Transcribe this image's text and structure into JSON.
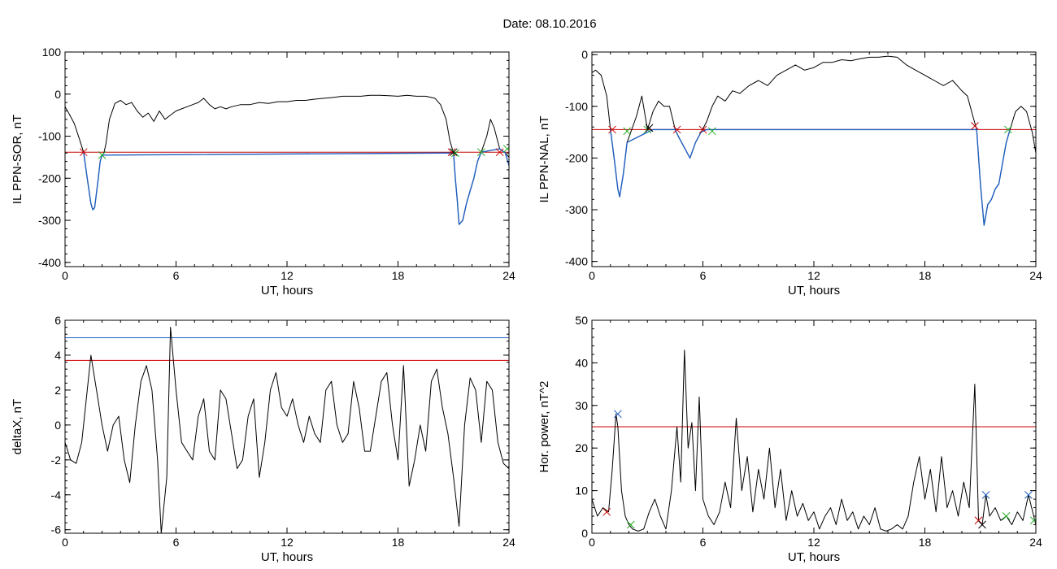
{
  "header": {
    "date_label": "Date:  08.10.2016"
  },
  "chart_data": [
    {
      "id": "ppn-sor",
      "type": "line",
      "xlabel": "UT, hours",
      "ylabel": "IL PPN-SOR, nT",
      "xlim": [
        0,
        24
      ],
      "ylim": [
        -410,
        100
      ],
      "xticks": [
        0,
        6,
        12,
        18,
        24
      ],
      "yticks": [
        -400,
        -300,
        -200,
        -100,
        0,
        100
      ],
      "threshold_lines": [
        {
          "y": -138,
          "color": "#cc0000"
        }
      ],
      "series": [
        {
          "color": "#000000",
          "x": [
            0,
            0.2,
            0.5,
            0.8,
            1.0,
            1.2,
            1.4,
            1.5,
            1.6,
            1.8,
            1.9,
            2.0,
            2.1,
            2.2,
            2.4,
            2.7,
            3.0,
            3.3,
            3.6,
            3.9,
            4.2,
            4.5,
            4.8,
            5.1,
            5.4,
            5.7,
            6.0,
            6.3,
            6.6,
            6.9,
            7.2,
            7.5,
            7.8,
            8.1,
            8.4,
            8.7,
            9,
            9.5,
            10,
            10.5,
            11,
            11.5,
            12,
            12.5,
            13,
            13.5,
            14,
            14.5,
            15,
            15.5,
            16,
            16.5,
            17,
            17.5,
            18,
            18.5,
            19,
            19.5,
            20,
            20.3,
            20.6,
            20.8,
            21.0,
            21.1,
            21.2,
            21.3,
            21.5,
            21.7,
            21.9,
            22.1,
            22.3,
            22.5,
            22.8,
            23.0,
            23.2,
            23.5,
            23.8,
            24.0
          ],
          "y": [
            -30,
            -45,
            -70,
            -110,
            -138,
            -200,
            -260,
            -275,
            -270,
            -200,
            -160,
            -145,
            -140,
            -120,
            -60,
            -22,
            -15,
            -25,
            -20,
            -40,
            -55,
            -45,
            -65,
            -40,
            -60,
            -50,
            -40,
            -35,
            -30,
            -25,
            -20,
            -10,
            -25,
            -35,
            -30,
            -35,
            -30,
            -25,
            -25,
            -20,
            -22,
            -18,
            -18,
            -15,
            -15,
            -12,
            -10,
            -8,
            -5,
            -5,
            -5,
            -3,
            -3,
            -4,
            -5,
            -3,
            -5,
            -5,
            -10,
            -25,
            -60,
            -110,
            -140,
            -200,
            -250,
            -310,
            -300,
            -260,
            -230,
            -200,
            -160,
            -138,
            -100,
            -60,
            -80,
            -130,
            -140,
            -150
          ]
        },
        {
          "color": "#1f5fbf",
          "x": [
            1.0,
            1.2,
            1.4,
            1.5,
            1.6,
            1.8,
            1.9,
            2.0,
            21.0,
            21.1,
            21.2,
            21.3,
            21.5,
            21.7,
            21.9,
            22.1,
            22.3,
            22.5,
            23.5,
            23.8,
            24.0
          ],
          "y": [
            -138,
            -200,
            -260,
            -275,
            -270,
            -200,
            -160,
            -145,
            -140,
            -200,
            -250,
            -310,
            -300,
            -260,
            -230,
            -200,
            -160,
            -138,
            -130,
            -140,
            -170
          ]
        }
      ],
      "markers": [
        {
          "x": 1.0,
          "y": -138,
          "color": "#cc0000"
        },
        {
          "x": 2.0,
          "y": -145,
          "color": "#22aa22"
        },
        {
          "x": 20.9,
          "y": -138,
          "color": "#cc0000"
        },
        {
          "x": 21.1,
          "y": -140,
          "color": "#22aa22"
        },
        {
          "x": 21.0,
          "y": -138,
          "color": "#000000"
        },
        {
          "x": 22.5,
          "y": -138,
          "color": "#22aa22"
        },
        {
          "x": 23.5,
          "y": -138,
          "color": "#cc0000"
        },
        {
          "x": 23.9,
          "y": -130,
          "color": "#22aa22"
        }
      ]
    },
    {
      "id": "ppn-nal",
      "type": "line",
      "xlabel": "UT, hours",
      "ylabel": "IL PPN-NAL, nT",
      "xlim": [
        0,
        24
      ],
      "ylim": [
        -410,
        5
      ],
      "xticks": [
        0,
        6,
        12,
        18,
        24
      ],
      "yticks": [
        -400,
        -300,
        -200,
        -100,
        0
      ],
      "threshold_lines": [
        {
          "y": -145,
          "color": "#cc0000"
        }
      ],
      "series": [
        {
          "color": "#000000",
          "x": [
            0,
            0.2,
            0.5,
            0.8,
            1.0,
            1.2,
            1.4,
            1.5,
            1.7,
            1.9,
            2.1,
            2.4,
            2.7,
            3.0,
            3.3,
            3.6,
            3.9,
            4.2,
            4.5,
            4.7,
            5.0,
            5.3,
            5.6,
            5.9,
            6.2,
            6.5,
            6.8,
            7.2,
            7.6,
            8.0,
            8.5,
            9,
            9.5,
            10,
            10.5,
            11,
            11.5,
            12,
            12.5,
            13,
            13.5,
            14,
            14.5,
            15,
            15.5,
            16,
            16.5,
            17,
            17.5,
            18,
            18.5,
            19,
            19.5,
            20,
            20.3,
            20.6,
            20.8,
            21.0,
            21.2,
            21.4,
            21.6,
            21.8,
            22.0,
            22.2,
            22.4,
            22.6,
            22.9,
            23.2,
            23.5,
            23.8,
            24.0
          ],
          "y": [
            -35,
            -30,
            -40,
            -80,
            -145,
            -200,
            -260,
            -275,
            -230,
            -170,
            -150,
            -120,
            -80,
            -145,
            -110,
            -90,
            -100,
            -100,
            -145,
            -160,
            -180,
            -200,
            -170,
            -150,
            -130,
            -100,
            -80,
            -90,
            -70,
            -75,
            -60,
            -50,
            -60,
            -40,
            -30,
            -20,
            -30,
            -25,
            -15,
            -15,
            -10,
            -12,
            -8,
            -5,
            -5,
            -3,
            -5,
            -20,
            -30,
            -40,
            -50,
            -60,
            -50,
            -70,
            -80,
            -120,
            -145,
            -250,
            -330,
            -290,
            -280,
            -260,
            -250,
            -210,
            -170,
            -145,
            -110,
            -100,
            -110,
            -150,
            -190
          ]
        },
        {
          "color": "#1f5fbf",
          "x": [
            1.0,
            1.2,
            1.4,
            1.5,
            1.7,
            1.9,
            3.0,
            3.3,
            4.5,
            4.7,
            5.0,
            5.3,
            5.6,
            5.9,
            6.2,
            20.8,
            21.0,
            21.2,
            21.4,
            21.6,
            21.8,
            22.0,
            22.2,
            22.4,
            22.6
          ],
          "y": [
            -145,
            -200,
            -260,
            -275,
            -230,
            -170,
            -150,
            -145,
            -145,
            -160,
            -180,
            -200,
            -170,
            -150,
            -145,
            -145,
            -250,
            -330,
            -290,
            -280,
            -260,
            -250,
            -210,
            -170,
            -145
          ]
        }
      ],
      "markers": [
        {
          "x": 1.1,
          "y": -145,
          "color": "#cc0000"
        },
        {
          "x": 1.9,
          "y": -148,
          "color": "#22aa22"
        },
        {
          "x": 3.0,
          "y": -145,
          "color": "#22aa22"
        },
        {
          "x": 3.1,
          "y": -142,
          "color": "#000000"
        },
        {
          "x": 4.6,
          "y": -145,
          "color": "#cc0000"
        },
        {
          "x": 6.0,
          "y": -145,
          "color": "#cc0000"
        },
        {
          "x": 6.5,
          "y": -148,
          "color": "#22aa22"
        },
        {
          "x": 20.7,
          "y": -138,
          "color": "#cc0000"
        },
        {
          "x": 22.5,
          "y": -145,
          "color": "#22aa22"
        }
      ]
    },
    {
      "id": "deltax",
      "type": "line",
      "xlabel": "UT, hours",
      "ylabel": "deltaX, nT",
      "xlim": [
        0,
        24
      ],
      "ylim": [
        -6.2,
        6
      ],
      "xticks": [
        0,
        6,
        12,
        18,
        24
      ],
      "yticks": [
        -6,
        -4,
        -2,
        0,
        2,
        4,
        6
      ],
      "threshold_lines": [
        {
          "y": 5.0,
          "color": "#1f5fbf"
        },
        {
          "y": 3.7,
          "color": "#cc0000"
        }
      ],
      "series": [
        {
          "color": "#000000",
          "x": [
            0,
            0.3,
            0.6,
            0.9,
            1.2,
            1.4,
            1.7,
            2.0,
            2.3,
            2.6,
            2.9,
            3.2,
            3.5,
            3.8,
            4.1,
            4.4,
            4.7,
            5.0,
            5.2,
            5.5,
            5.7,
            6.0,
            6.3,
            6.6,
            6.9,
            7.2,
            7.5,
            7.8,
            8.1,
            8.4,
            8.7,
            9.0,
            9.3,
            9.6,
            9.9,
            10.2,
            10.5,
            10.8,
            11.1,
            11.4,
            11.7,
            12.0,
            12.3,
            12.6,
            12.9,
            13.2,
            13.5,
            13.8,
            14.1,
            14.4,
            14.7,
            15.0,
            15.3,
            15.6,
            15.9,
            16.2,
            16.5,
            16.8,
            17.1,
            17.4,
            17.7,
            18.0,
            18.3,
            18.6,
            18.9,
            19.2,
            19.5,
            19.8,
            20.1,
            20.4,
            20.7,
            21.0,
            21.3,
            21.6,
            21.9,
            22.2,
            22.5,
            22.8,
            23.1,
            23.4,
            23.7,
            24.0
          ],
          "y": [
            -1,
            -2,
            -2.2,
            -1,
            2,
            4,
            2,
            0,
            -1.5,
            0,
            0.5,
            -2,
            -3.3,
            0,
            2.5,
            3.4,
            2,
            -2,
            -6.2,
            -3,
            5.6,
            2,
            -1,
            -1.5,
            -2,
            0.5,
            1.5,
            -1.5,
            -2,
            2,
            1.5,
            -0.5,
            -2.5,
            -2,
            0.5,
            1.5,
            -3,
            -1,
            2,
            3,
            1,
            0.5,
            1.5,
            0,
            -1,
            0.5,
            -0.5,
            -1,
            2,
            2.5,
            0,
            -1,
            -0.5,
            2.5,
            1,
            -1.5,
            -1.5,
            0.5,
            2.5,
            3,
            0,
            -2,
            3.4,
            -3.5,
            -2,
            0,
            -1.5,
            2.5,
            3.2,
            1,
            -0.5,
            -3,
            -5.8,
            0,
            2.7,
            2,
            -1,
            2.5,
            2,
            -1,
            -2.2,
            -2.5
          ]
        }
      ],
      "markers": []
    },
    {
      "id": "hor-power",
      "type": "line",
      "xlabel": "UT, hours",
      "ylabel": "Hor. power, nT^2",
      "xlim": [
        0,
        24
      ],
      "ylim": [
        0,
        50
      ],
      "xticks": [
        0,
        6,
        12,
        18,
        24
      ],
      "yticks": [
        0,
        10,
        20,
        30,
        40,
        50
      ],
      "threshold_lines": [
        {
          "y": 25,
          "color": "#cc0000"
        }
      ],
      "series": [
        {
          "color": "#000000",
          "x": [
            0,
            0.3,
            0.6,
            0.9,
            1.1,
            1.3,
            1.4,
            1.6,
            1.8,
            2.0,
            2.2,
            2.5,
            2.8,
            3.1,
            3.4,
            3.7,
            4.0,
            4.3,
            4.6,
            4.8,
            5.0,
            5.2,
            5.4,
            5.6,
            5.8,
            6.0,
            6.3,
            6.6,
            6.9,
            7.2,
            7.5,
            7.8,
            8.1,
            8.4,
            8.7,
            9.0,
            9.3,
            9.6,
            9.9,
            10.2,
            10.5,
            10.8,
            11.1,
            11.4,
            11.7,
            12.0,
            12.3,
            12.6,
            12.9,
            13.2,
            13.5,
            13.8,
            14.1,
            14.4,
            14.7,
            15.0,
            15.3,
            15.6,
            15.9,
            16.2,
            16.5,
            16.8,
            17.1,
            17.4,
            17.7,
            18.0,
            18.3,
            18.6,
            18.9,
            19.2,
            19.5,
            19.8,
            20.1,
            20.4,
            20.7,
            20.9,
            21.1,
            21.3,
            21.5,
            21.8,
            22.1,
            22.4,
            22.7,
            23.0,
            23.3,
            23.6,
            24.0
          ],
          "y": [
            8,
            4,
            6,
            5,
            15,
            28,
            25,
            10,
            4,
            2,
            1,
            0.5,
            1,
            5,
            8,
            4,
            1,
            10,
            25,
            12,
            43,
            20,
            26,
            10,
            32,
            8,
            4,
            2,
            5,
            12,
            6,
            27,
            10,
            18,
            5,
            15,
            8,
            20,
            6,
            15,
            3,
            10,
            4,
            7,
            3,
            5,
            1,
            4,
            6,
            2,
            8,
            3,
            5,
            1,
            4,
            2,
            6,
            1,
            0.5,
            1,
            2,
            1,
            4,
            12,
            18,
            8,
            15,
            5,
            18,
            6,
            10,
            4,
            12,
            6,
            35,
            3,
            2,
            9,
            4,
            6,
            3,
            4,
            2,
            5,
            3,
            9,
            2
          ]
        }
      ],
      "markers": [
        {
          "x": 0.8,
          "y": 5,
          "color": "#cc0000"
        },
        {
          "x": 1.4,
          "y": 28,
          "color": "#1f5fbf"
        },
        {
          "x": 2.1,
          "y": 2,
          "color": "#22aa22"
        },
        {
          "x": 20.9,
          "y": 3,
          "color": "#cc0000"
        },
        {
          "x": 21.1,
          "y": 2,
          "color": "#000000"
        },
        {
          "x": 21.3,
          "y": 9,
          "color": "#1f5fbf"
        },
        {
          "x": 22.4,
          "y": 4,
          "color": "#22aa22"
        },
        {
          "x": 23.6,
          "y": 9,
          "color": "#1f5fbf"
        },
        {
          "x": 23.9,
          "y": 3,
          "color": "#22aa22"
        }
      ]
    }
  ]
}
